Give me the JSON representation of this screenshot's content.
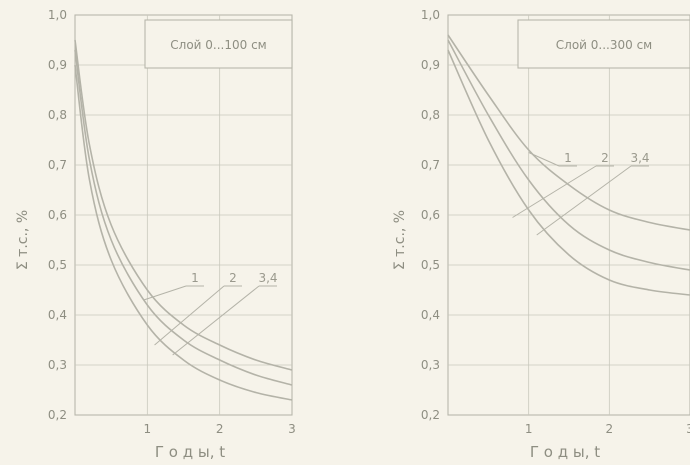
{
  "chart_data": [
    {
      "type": "line",
      "title": "Слой 0...100 см",
      "xlabel": "Г о д ы, t",
      "ylabel": "Σ т.с., %",
      "xlim": [
        0,
        3.0
      ],
      "ylim": [
        0.2,
        1.0
      ],
      "x_ticks": [
        1,
        2,
        3
      ],
      "y_ticks": [
        0.2,
        0.3,
        0.4,
        0.5,
        0.6,
        0.7,
        0.8,
        0.9,
        1.0
      ],
      "y_tick_labels": [
        "0,2",
        "0,3",
        "0,4",
        "0,5",
        "0,6",
        "0,7",
        "0,8",
        "0,9",
        "1,0"
      ],
      "grid": true,
      "series": [
        {
          "name": "1",
          "x": [
            0.0,
            0.2,
            0.5,
            1.0,
            1.5,
            2.0,
            2.5,
            3.0
          ],
          "values": [
            0.95,
            0.74,
            0.58,
            0.45,
            0.38,
            0.34,
            0.31,
            0.29
          ]
        },
        {
          "name": "2",
          "x": [
            0.0,
            0.2,
            0.5,
            1.0,
            1.5,
            2.0,
            2.5,
            3.0
          ],
          "values": [
            0.93,
            0.71,
            0.55,
            0.42,
            0.35,
            0.31,
            0.28,
            0.26
          ]
        },
        {
          "name": "3,4",
          "x": [
            0.0,
            0.2,
            0.5,
            1.0,
            1.5,
            2.0,
            2.5,
            3.0
          ],
          "values": [
            0.9,
            0.67,
            0.51,
            0.38,
            0.31,
            0.27,
            0.245,
            0.23
          ]
        }
      ]
    },
    {
      "type": "line",
      "title": "Слой 0...300 см",
      "xlabel": "Г о д ы, t",
      "ylabel": "Σ т.с., %",
      "xlim": [
        0,
        3.0
      ],
      "ylim": [
        0.2,
        1.0
      ],
      "x_ticks": [
        1,
        2,
        3
      ],
      "y_ticks": [
        0.2,
        0.3,
        0.4,
        0.5,
        0.6,
        0.7,
        0.8,
        0.9,
        1.0
      ],
      "y_tick_labels": [
        "0,2",
        "0,3",
        "0,4",
        "0,5",
        "0,6",
        "0,7",
        "0,8",
        "0,9",
        "1,0"
      ],
      "grid": true,
      "series": [
        {
          "name": "1",
          "x": [
            0.0,
            0.5,
            1.0,
            1.5,
            2.0,
            2.5,
            3.0
          ],
          "values": [
            0.96,
            0.84,
            0.73,
            0.66,
            0.61,
            0.585,
            0.57
          ]
        },
        {
          "name": "2",
          "x": [
            0.0,
            0.5,
            1.0,
            1.5,
            2.0,
            2.5,
            3.0
          ],
          "values": [
            0.95,
            0.8,
            0.67,
            0.58,
            0.53,
            0.505,
            0.49
          ]
        },
        {
          "name": "3,4",
          "x": [
            0.0,
            0.5,
            1.0,
            1.5,
            2.0,
            2.5,
            3.0
          ],
          "values": [
            0.93,
            0.75,
            0.61,
            0.52,
            0.47,
            0.45,
            0.44
          ]
        }
      ]
    }
  ]
}
